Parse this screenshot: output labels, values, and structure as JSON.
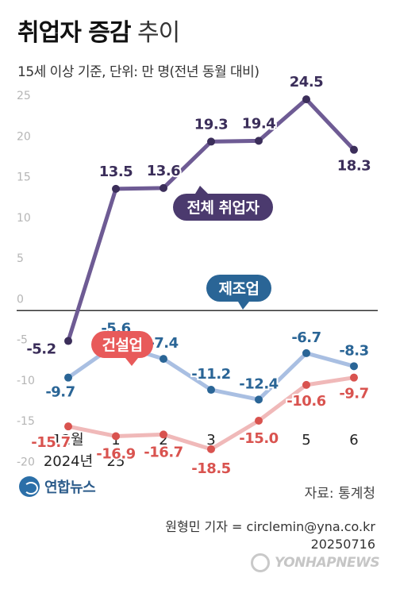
{
  "title_strong": "취업자 증감",
  "title_light": "추이",
  "subtitle": "15세 이상 기준, 단위: 만 명(전년 동월 대비)",
  "source": "자료: 통계청",
  "logo_text": "연합뉴스",
  "reporter": "원형민 기자 = circlemin@yna.co.kr",
  "date_code": "20250716",
  "watermark": "YONHAPNEWS",
  "chart_data": {
    "type": "line",
    "categories": [
      "12월",
      "1",
      "2",
      "3",
      "4",
      "5",
      "6"
    ],
    "category_sub": [
      "2024년",
      "25",
      "",
      "",
      "",
      "",
      ""
    ],
    "yticks": [
      "25",
      "20",
      "15",
      "10",
      "5",
      "0",
      "-5",
      "-10",
      "-15",
      "-20"
    ],
    "ylim": [
      -23,
      28
    ],
    "series": [
      {
        "name": "전체 취업자",
        "color": "#6e5b94",
        "label_color": "#3b2e5a",
        "values": [
          -5.2,
          13.5,
          13.6,
          19.3,
          19.4,
          24.5,
          18.3
        ],
        "labels": [
          "-5.2",
          "13.5",
          "13.6",
          "19.3",
          "19.4",
          "24.5",
          "18.3"
        ]
      },
      {
        "name": "제조업",
        "color": "#a9bfe2",
        "label_color": "#2a6596",
        "values": [
          -9.7,
          -5.6,
          -7.4,
          -11.2,
          -12.4,
          -6.7,
          -8.3
        ],
        "labels": [
          "-9.7",
          "-5.6",
          "-7.4",
          "-11.2",
          "-12.4",
          "-6.7",
          "-8.3"
        ]
      },
      {
        "name": "건설업",
        "color": "#f0b9b9",
        "label_color": "#d9534f",
        "values": [
          -15.7,
          -16.9,
          -16.7,
          -18.5,
          -15.0,
          -10.6,
          -9.7
        ],
        "labels": [
          "-15.7",
          "-16.9",
          "-16.7",
          "-18.5",
          "-15.0",
          "-10.6",
          "-9.7"
        ]
      }
    ]
  }
}
